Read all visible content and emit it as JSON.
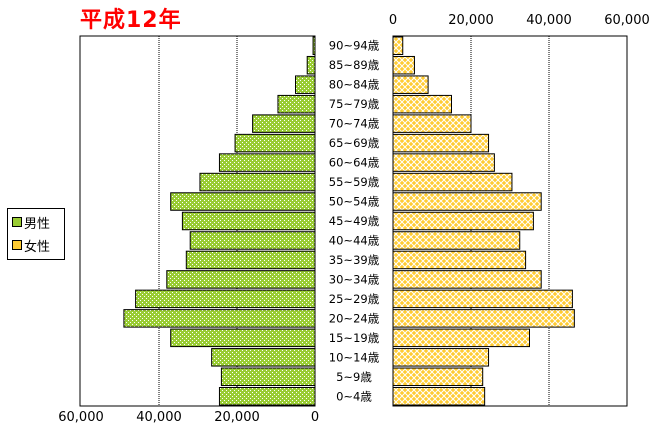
{
  "title": "平成12年",
  "chart_data": {
    "type": "bar",
    "categories": [
      "0~4歳",
      "5~9歳",
      "10~14歳",
      "15~19歳",
      "20~24歳",
      "25~29歳",
      "30~34歳",
      "35~39歳",
      "40~44歳",
      "45~49歳",
      "50~54歳",
      "55~59歳",
      "60~64歳",
      "65~69歳",
      "70~74歳",
      "75~79歳",
      "80~84歳",
      "85~89歳",
      "90~94歳"
    ],
    "series": [
      {
        "name": "男性",
        "color": "#99cc33",
        "values": [
          24500,
          24000,
          26500,
          37000,
          49000,
          46000,
          38000,
          33000,
          32000,
          34000,
          37000,
          29500,
          24500,
          20500,
          16000,
          9500,
          5000,
          2000,
          500
        ]
      },
      {
        "name": "女性",
        "color": "#ffcc33",
        "values": [
          23500,
          23000,
          24500,
          35000,
          46500,
          46000,
          38000,
          34000,
          32500,
          36000,
          38000,
          30500,
          26000,
          24500,
          20000,
          15000,
          9000,
          5500,
          2500
        ]
      }
    ],
    "male_axis_ticks": [
      "0",
      "20,000",
      "40,000",
      "60,000"
    ],
    "female_axis_ticks": [
      "0",
      "20,000",
      "40,000",
      "60,000"
    ],
    "xlim": [
      0,
      60000
    ],
    "legend_position": "left"
  }
}
